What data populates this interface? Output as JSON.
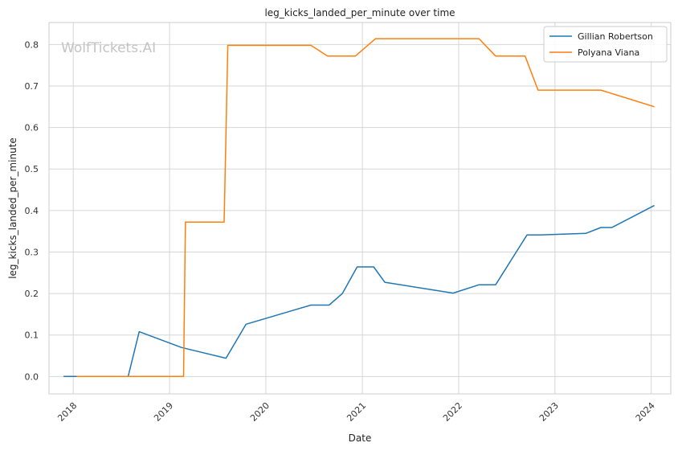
{
  "watermark": "WolfTickets.AI",
  "chart_data": {
    "type": "line",
    "title": "leg_kicks_landed_per_minute over time",
    "xlabel": "Date",
    "ylabel": "leg_kicks_landed_per_minute",
    "x_ticks": [
      "2018",
      "2019",
      "2020",
      "2021",
      "2022",
      "2023",
      "2024"
    ],
    "y_ticks": [
      "0.0",
      "0.1",
      "0.2",
      "0.3",
      "0.4",
      "0.5",
      "0.6",
      "0.7",
      "0.8"
    ],
    "xlim": [
      "2017-10-01",
      "2024-03-15"
    ],
    "ylim": [
      -0.042,
      0.853
    ],
    "grid": true,
    "legend_position": "top-right",
    "series": [
      {
        "name": "Gillian Robertson",
        "color": "#1f77b4",
        "points": [
          [
            "2017-11-25",
            0.0
          ],
          [
            "2018-02-01",
            0.0
          ],
          [
            "2018-07-28",
            0.0
          ],
          [
            "2018-09-08",
            0.108
          ],
          [
            "2019-02-15",
            0.07
          ],
          [
            "2019-08-03",
            0.044
          ],
          [
            "2019-10-18",
            0.126
          ],
          [
            "2020-06-20",
            0.172
          ],
          [
            "2020-08-28",
            0.172
          ],
          [
            "2020-10-17",
            0.2
          ],
          [
            "2020-12-12",
            0.264
          ],
          [
            "2021-02-13",
            0.264
          ],
          [
            "2021-03-27",
            0.227
          ],
          [
            "2021-12-11",
            0.201
          ],
          [
            "2022-03-19",
            0.221
          ],
          [
            "2022-05-21",
            0.221
          ],
          [
            "2022-09-17",
            0.341
          ],
          [
            "2022-11-05",
            0.341
          ],
          [
            "2023-04-29",
            0.345
          ],
          [
            "2023-06-24",
            0.359
          ],
          [
            "2023-08-05",
            0.359
          ],
          [
            "2024-01-13",
            0.412
          ]
        ]
      },
      {
        "name": "Polyana Viana",
        "color": "#ff7f0e",
        "points": [
          [
            "2018-01-14",
            0.0
          ],
          [
            "2018-07-21",
            0.0
          ],
          [
            "2019-02-23",
            0.0
          ],
          [
            "2019-03-02",
            0.372
          ],
          [
            "2019-07-27",
            0.372
          ],
          [
            "2019-08-10",
            0.798
          ],
          [
            "2020-06-20",
            0.798
          ],
          [
            "2020-08-22",
            0.772
          ],
          [
            "2020-12-05",
            0.772
          ],
          [
            "2021-02-20",
            0.814
          ],
          [
            "2022-03-19",
            0.814
          ],
          [
            "2022-05-21",
            0.772
          ],
          [
            "2022-09-10",
            0.772
          ],
          [
            "2022-10-29",
            0.69
          ],
          [
            "2023-06-24",
            0.69
          ],
          [
            "2024-01-13",
            0.65
          ]
        ]
      }
    ]
  }
}
